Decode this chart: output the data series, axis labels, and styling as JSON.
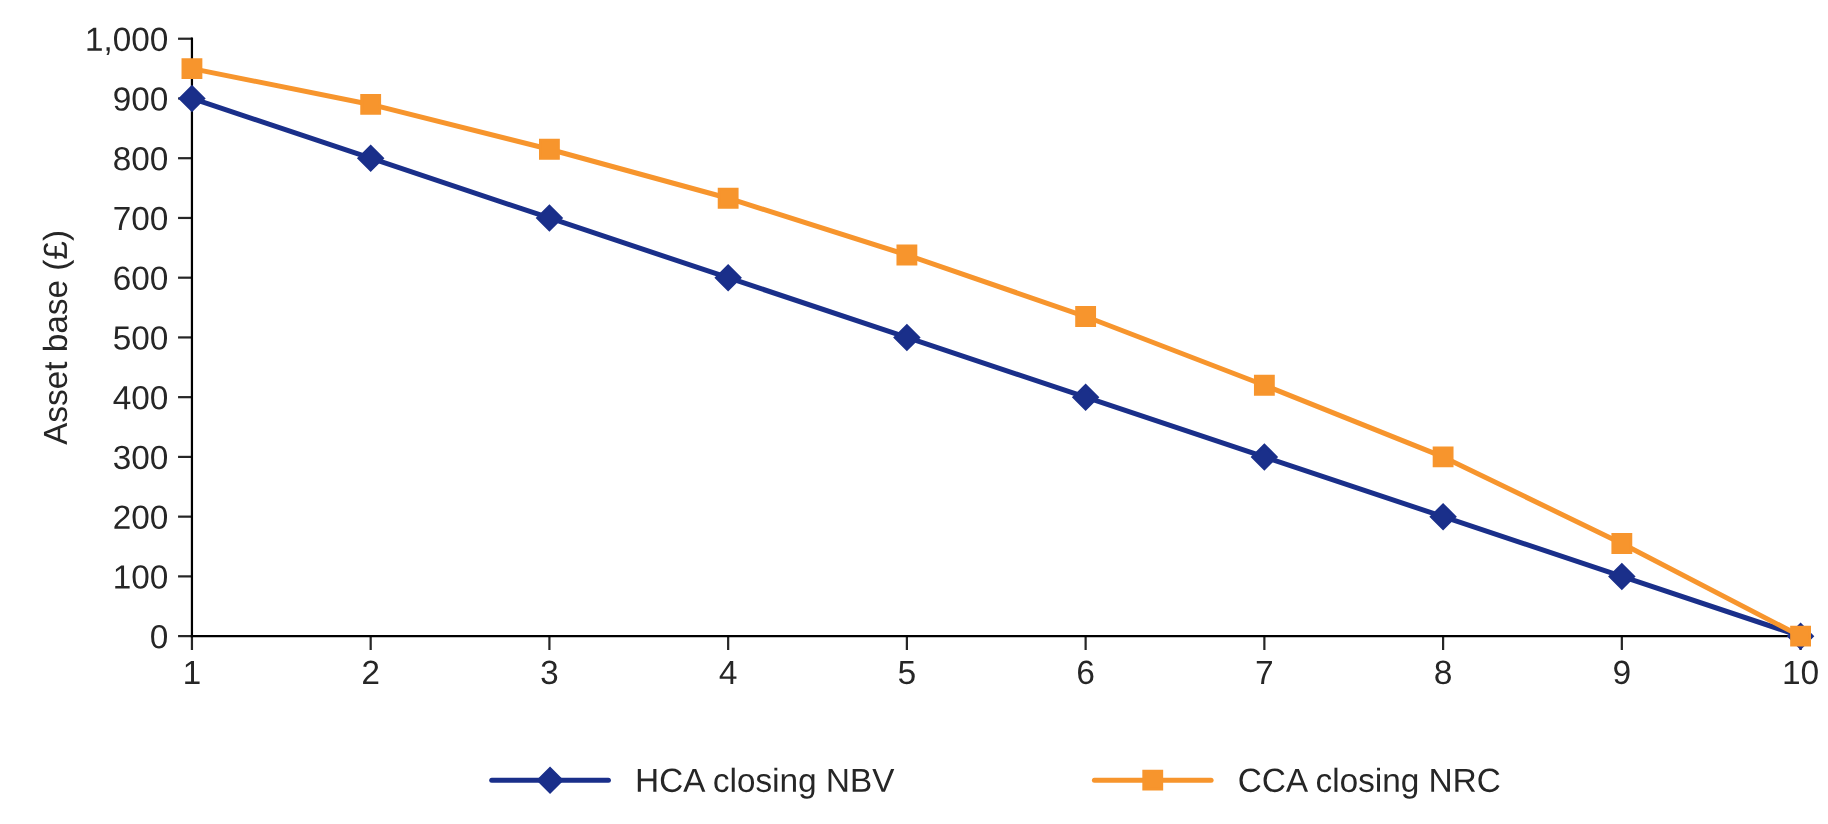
{
  "chart_data": {
    "type": "line",
    "ylabel": "Asset base (£)",
    "x": [
      1,
      2,
      3,
      4,
      5,
      6,
      7,
      8,
      9,
      10
    ],
    "series": [
      {
        "name": "HCA closing NBV",
        "color": "#1a2f8a",
        "marker": "diamond",
        "values": [
          900,
          800,
          700,
          600,
          500,
          400,
          300,
          200,
          100,
          0
        ]
      },
      {
        "name": "CCA closing NRC",
        "color": "#f7952d",
        "marker": "square",
        "values": [
          950,
          890,
          815,
          733,
          638,
          535,
          420,
          300,
          155,
          0
        ]
      }
    ],
    "xlim": [
      1,
      10
    ],
    "xticks": [
      1,
      2,
      3,
      4,
      5,
      6,
      7,
      8,
      9,
      10
    ],
    "ylim": [
      0,
      1000
    ],
    "yticks": [
      0,
      100,
      200,
      300,
      400,
      500,
      600,
      700,
      800,
      900,
      {
        "value": 1000,
        "label": "1,000"
      }
    ],
    "grid": false,
    "legend": "bottom",
    "line_style": "solid"
  }
}
